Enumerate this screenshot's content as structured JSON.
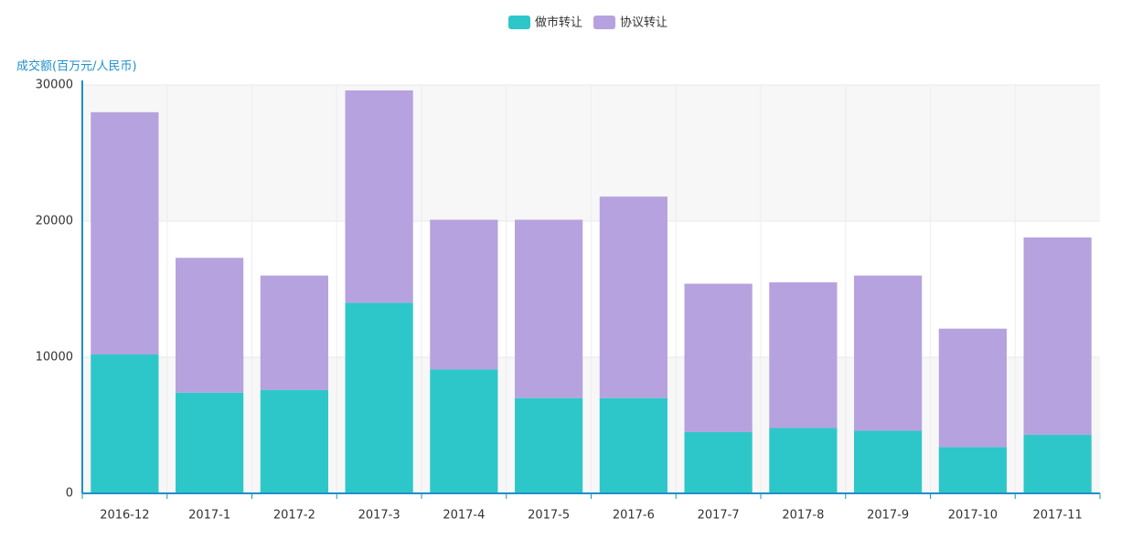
{
  "chart_data": {
    "type": "stacked_bar",
    "y_axis_title": "成交额(百万元/人民币)",
    "categories": [
      "2016-12",
      "2017-1",
      "2017-2",
      "2017-3",
      "2017-4",
      "2017-5",
      "2017-6",
      "2017-7",
      "2017-8",
      "2017-9",
      "2017-10",
      "2017-11"
    ],
    "series": [
      {
        "name": "做市转让",
        "color": "#2ec7c9",
        "values": [
          10200,
          7400,
          7600,
          14000,
          9100,
          7000,
          7000,
          4500,
          4800,
          4600,
          3400,
          4300
        ]
      },
      {
        "name": "协议转让",
        "color": "#b6a2de",
        "values": [
          17800,
          9900,
          8400,
          15600,
          11000,
          13100,
          14800,
          10900,
          10700,
          11400,
          8700,
          14500
        ]
      }
    ],
    "ylim": [
      0,
      30000
    ],
    "yticks": [
      0,
      10000,
      20000,
      30000
    ],
    "grid": true,
    "legend": "top"
  }
}
